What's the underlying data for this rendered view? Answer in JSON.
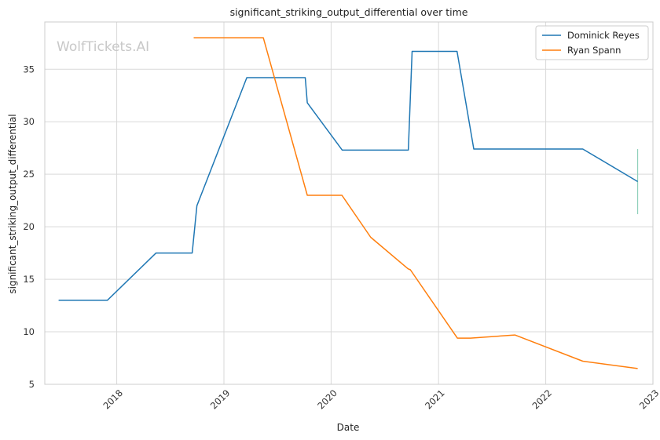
{
  "chart_data": {
    "type": "line",
    "title": "significant_striking_output_differential over time",
    "xlabel": "Date",
    "ylabel": "significant_striking_output_differential",
    "watermark": "WolfTickets.AI",
    "xlim": [
      "2017-05-01",
      "2023-01-01"
    ],
    "ylim": [
      5,
      39.5
    ],
    "xticks": [
      {
        "date": "2018-01-01",
        "label": "2018"
      },
      {
        "date": "2019-01-01",
        "label": "2019"
      },
      {
        "date": "2020-01-01",
        "label": "2020"
      },
      {
        "date": "2021-01-01",
        "label": "2021"
      },
      {
        "date": "2022-01-01",
        "label": "2022"
      },
      {
        "date": "2023-01-01",
        "label": "2023"
      }
    ],
    "yticks": [
      5,
      10,
      15,
      20,
      25,
      30,
      35
    ],
    "grid": true,
    "legend_position": "top-right",
    "series": [
      {
        "name": "Dominick Reyes",
        "color": "#1f77b4",
        "points": [
          {
            "x": "2017-06-17",
            "y": 13.0
          },
          {
            "x": "2017-11-30",
            "y": 13.0
          },
          {
            "x": "2018-05-15",
            "y": 17.5
          },
          {
            "x": "2018-09-15",
            "y": 17.5
          },
          {
            "x": "2018-10-01",
            "y": 22.0
          },
          {
            "x": "2019-03-20",
            "y": 34.2
          },
          {
            "x": "2019-10-05",
            "y": 34.2
          },
          {
            "x": "2019-10-12",
            "y": 31.8
          },
          {
            "x": "2020-02-08",
            "y": 27.3
          },
          {
            "x": "2020-09-20",
            "y": 27.3
          },
          {
            "x": "2020-10-03",
            "y": 36.7
          },
          {
            "x": "2021-03-05",
            "y": 36.7
          },
          {
            "x": "2021-05-01",
            "y": 27.4
          },
          {
            "x": "2022-05-07",
            "y": 27.4
          },
          {
            "x": "2022-11-10",
            "y": 24.3
          }
        ]
      },
      {
        "name": "Ryan Spann",
        "color": "#ff7f0e",
        "points": [
          {
            "x": "2018-09-20",
            "y": 38.0
          },
          {
            "x": "2019-05-15",
            "y": 38.0
          },
          {
            "x": "2019-10-12",
            "y": 23.0
          },
          {
            "x": "2020-02-07",
            "y": 23.0
          },
          {
            "x": "2020-05-15",
            "y": 19.0
          },
          {
            "x": "2020-09-19",
            "y": 16.0
          },
          {
            "x": "2020-09-27",
            "y": 15.9
          },
          {
            "x": "2021-03-06",
            "y": 9.4
          },
          {
            "x": "2021-04-20",
            "y": 9.4
          },
          {
            "x": "2021-09-18",
            "y": 9.7
          },
          {
            "x": "2022-05-07",
            "y": 7.2
          },
          {
            "x": "2022-11-10",
            "y": 6.5
          }
        ]
      }
    ],
    "error_bar": {
      "x": "2022-11-10",
      "y_low": 21.2,
      "y_high": 27.4,
      "color": "#8fd0bb"
    }
  }
}
